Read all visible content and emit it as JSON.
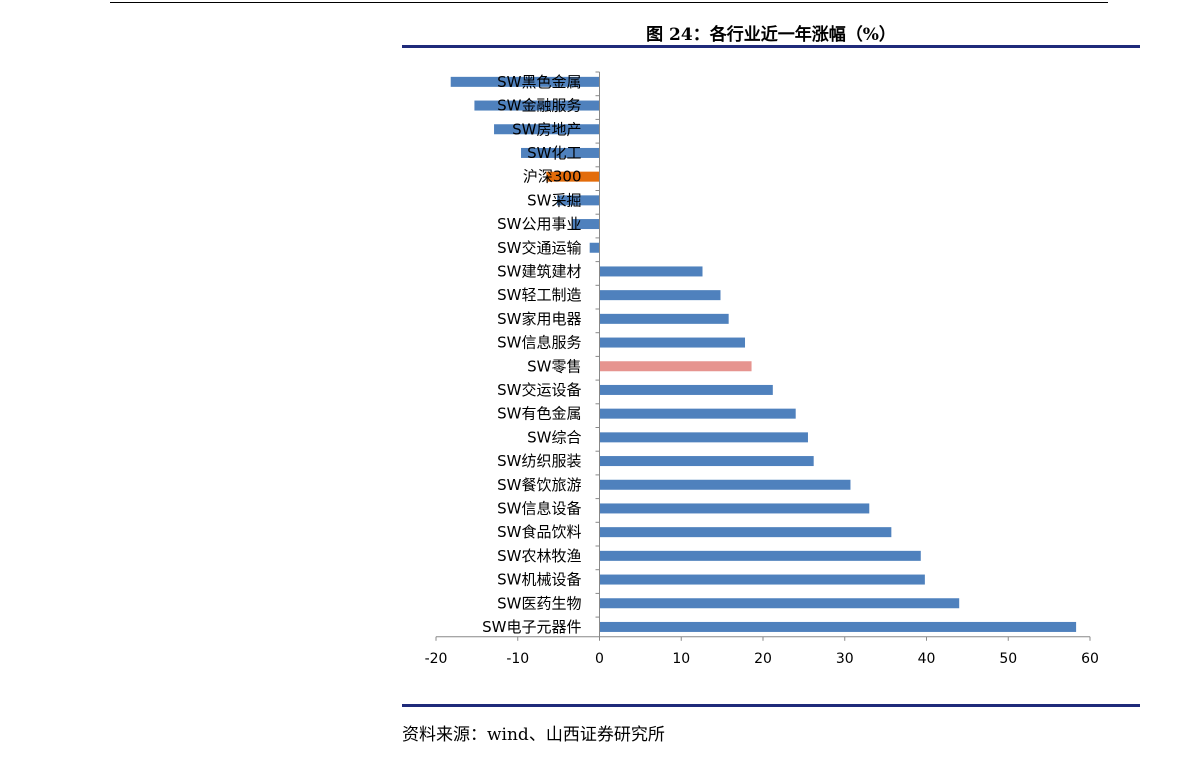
{
  "figure": {
    "title": "图 24：各行业近一年涨幅（%）",
    "source": "资料来源：wind、山西证券研究所"
  },
  "colors": {
    "bar_default": "#4f81bd",
    "bar_index": "#e36c0a",
    "bar_highlight": "#e6948f",
    "rule": "#1f2a7a"
  },
  "chart_data": {
    "type": "bar",
    "orientation": "horizontal",
    "title": "",
    "xlabel": "",
    "ylabel": "",
    "xlim": [
      -20,
      60
    ],
    "xticks": [
      -20,
      -10,
      0,
      10,
      20,
      30,
      40,
      50,
      60
    ],
    "grid": false,
    "categories": [
      "SW黑色金属",
      "SW金融服务",
      "SW房地产",
      "SW化工",
      "沪深300",
      "SW采掘",
      "SW公用事业",
      "SW交通运输",
      "SW建筑建材",
      "SW轻工制造",
      "SW家用电器",
      "SW信息服务",
      "SW零售",
      "SW交运设备",
      "SW有色金属",
      "SW综合",
      "SW纺织服装",
      "SW餐饮旅游",
      "SW信息设备",
      "SW食品饮料",
      "SW农林牧渔",
      "SW机械设备",
      "SW医药生物",
      "SW电子元器件"
    ],
    "values": [
      -18.2,
      -15.3,
      -12.9,
      -9.6,
      -6.5,
      -5.2,
      -3.3,
      -1.2,
      12.6,
      14.8,
      15.8,
      17.8,
      18.6,
      21.2,
      24.0,
      25.5,
      26.2,
      30.7,
      33.0,
      35.7,
      39.3,
      39.8,
      44.0,
      58.3
    ],
    "highlight": {
      "沪深300": "bar_index",
      "SW零售": "bar_highlight"
    }
  }
}
